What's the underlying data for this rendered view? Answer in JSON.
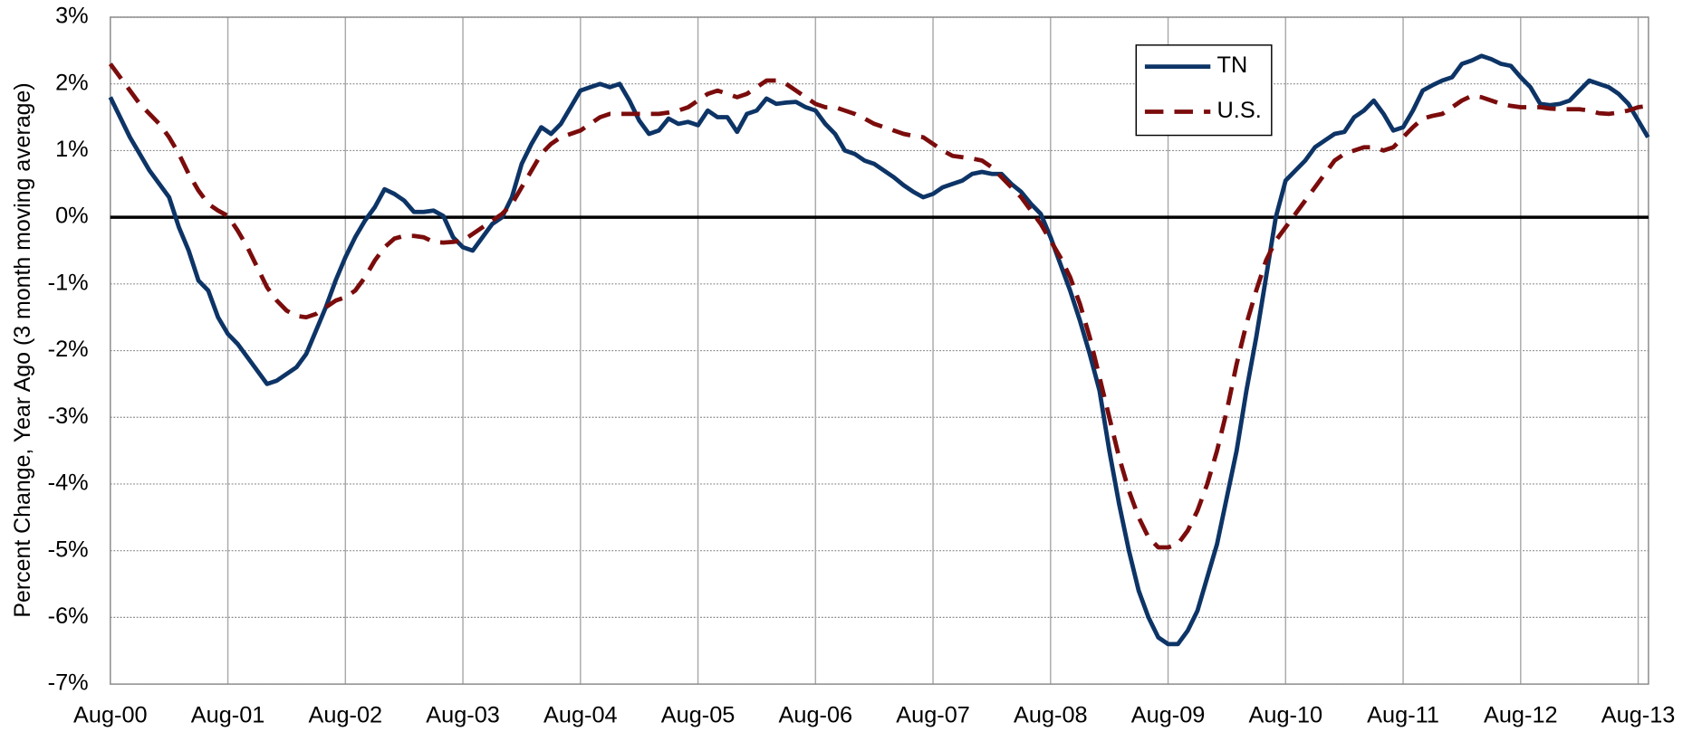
{
  "chart_data": {
    "type": "line",
    "y_label": "Percent Change, Year Ago (3 month moving average)",
    "categories": [
      "Aug-00",
      null,
      null,
      null,
      null,
      null,
      null,
      null,
      null,
      null,
      null,
      null,
      "Aug-01",
      null,
      null,
      null,
      null,
      null,
      null,
      null,
      null,
      null,
      null,
      null,
      "Aug-02",
      null,
      null,
      null,
      null,
      null,
      null,
      null,
      null,
      null,
      null,
      null,
      "Aug-03",
      null,
      null,
      null,
      null,
      null,
      null,
      null,
      null,
      null,
      null,
      null,
      "Aug-04",
      null,
      null,
      null,
      null,
      null,
      null,
      null,
      null,
      null,
      null,
      null,
      "Aug-05",
      null,
      null,
      null,
      null,
      null,
      null,
      null,
      null,
      null,
      null,
      null,
      "Aug-06",
      null,
      null,
      null,
      null,
      null,
      null,
      null,
      null,
      null,
      null,
      null,
      "Aug-07",
      null,
      null,
      null,
      null,
      null,
      null,
      null,
      null,
      null,
      null,
      null,
      "Aug-08",
      null,
      null,
      null,
      null,
      null,
      null,
      null,
      null,
      null,
      null,
      null,
      "Aug-09",
      null,
      null,
      null,
      null,
      null,
      null,
      null,
      null,
      null,
      null,
      null,
      "Aug-10",
      null,
      null,
      null,
      null,
      null,
      null,
      null,
      null,
      null,
      null,
      null,
      "Aug-11",
      null,
      null,
      null,
      null,
      null,
      null,
      null,
      null,
      null,
      null,
      null,
      "Aug-12",
      null,
      null,
      null,
      null,
      null,
      null,
      null,
      null,
      null,
      null,
      null,
      "Aug-13",
      null
    ],
    "series": [
      {
        "name": "TN",
        "color": "#0d3466",
        "dash": false,
        "values": [
          1.8,
          1.5,
          1.2,
          0.95,
          0.7,
          0.5,
          0.3,
          -0.15,
          -0.5,
          -0.95,
          -1.1,
          -1.5,
          -1.75,
          -1.9,
          -2.1,
          -2.3,
          -2.5,
          -2.45,
          -2.35,
          -2.25,
          -2.05,
          -1.7,
          -1.35,
          -0.95,
          -0.6,
          -0.3,
          -0.05,
          0.15,
          0.42,
          0.35,
          0.25,
          0.08,
          0.08,
          0.1,
          0.02,
          -0.3,
          -0.45,
          -0.5,
          -0.3,
          -0.1,
          0.0,
          0.3,
          0.8,
          1.1,
          1.35,
          1.25,
          1.4,
          1.65,
          1.9,
          1.95,
          2.0,
          1.95,
          2.0,
          1.75,
          1.45,
          1.25,
          1.3,
          1.48,
          1.4,
          1.43,
          1.38,
          1.6,
          1.5,
          1.5,
          1.28,
          1.55,
          1.6,
          1.78,
          1.7,
          1.72,
          1.73,
          1.65,
          1.6,
          1.4,
          1.25,
          1.0,
          0.95,
          0.85,
          0.8,
          0.7,
          0.6,
          0.48,
          0.38,
          0.3,
          0.35,
          0.45,
          0.5,
          0.55,
          0.65,
          0.68,
          0.65,
          0.65,
          0.5,
          0.38,
          0.2,
          0.05,
          -0.3,
          -0.7,
          -1.1,
          -1.55,
          -2.05,
          -2.6,
          -3.5,
          -4.3,
          -5.0,
          -5.6,
          -6.0,
          -6.3,
          -6.4,
          -6.4,
          -6.2,
          -5.9,
          -5.4,
          -4.9,
          -4.2,
          -3.5,
          -2.6,
          -1.8,
          -0.9,
          0.0,
          0.55,
          0.7,
          0.85,
          1.05,
          1.15,
          1.25,
          1.28,
          1.5,
          1.6,
          1.75,
          1.55,
          1.3,
          1.35,
          1.6,
          1.9,
          1.98,
          2.05,
          2.1,
          2.3,
          2.35,
          2.42,
          2.37,
          2.3,
          2.27,
          2.1,
          1.95,
          1.7,
          1.68,
          1.7,
          1.75,
          1.9,
          2.05,
          2.0,
          1.95,
          1.85,
          1.7,
          1.45,
          1.2
        ]
      },
      {
        "name": "U.S.",
        "color": "#7b0c0c",
        "dash": true,
        "values": [
          2.3,
          2.1,
          1.9,
          1.7,
          1.55,
          1.4,
          1.2,
          0.95,
          0.65,
          0.4,
          0.2,
          0.1,
          0.02,
          -0.2,
          -0.45,
          -0.75,
          -1.05,
          -1.25,
          -1.4,
          -1.48,
          -1.5,
          -1.45,
          -1.35,
          -1.25,
          -1.2,
          -1.1,
          -0.9,
          -0.65,
          -0.45,
          -0.32,
          -0.28,
          -0.28,
          -0.3,
          -0.37,
          -0.38,
          -0.37,
          -0.35,
          -0.25,
          -0.15,
          -0.05,
          0.05,
          0.2,
          0.45,
          0.7,
          0.95,
          1.1,
          1.2,
          1.25,
          1.3,
          1.4,
          1.5,
          1.55,
          1.55,
          1.55,
          1.55,
          1.55,
          1.55,
          1.57,
          1.6,
          1.65,
          1.75,
          1.85,
          1.9,
          1.85,
          1.8,
          1.85,
          1.95,
          2.05,
          2.05,
          2.0,
          1.9,
          1.8,
          1.7,
          1.65,
          1.65,
          1.6,
          1.55,
          1.48,
          1.4,
          1.35,
          1.3,
          1.25,
          1.22,
          1.2,
          1.1,
          1.0,
          0.92,
          0.9,
          0.88,
          0.85,
          0.75,
          0.6,
          0.45,
          0.3,
          0.1,
          -0.1,
          -0.35,
          -0.6,
          -0.9,
          -1.3,
          -1.8,
          -2.4,
          -3.0,
          -3.6,
          -4.1,
          -4.5,
          -4.8,
          -4.95,
          -4.95,
          -4.9,
          -4.7,
          -4.4,
          -4.0,
          -3.5,
          -2.9,
          -2.2,
          -1.6,
          -1.1,
          -0.65,
          -0.35,
          -0.15,
          0.05,
          0.25,
          0.45,
          0.65,
          0.85,
          0.95,
          1.0,
          1.05,
          1.05,
          1.0,
          1.05,
          1.2,
          1.35,
          1.48,
          1.52,
          1.55,
          1.65,
          1.75,
          1.82,
          1.8,
          1.75,
          1.7,
          1.67,
          1.65,
          1.65,
          1.65,
          1.63,
          1.62,
          1.62,
          1.62,
          1.6,
          1.56,
          1.55,
          1.57,
          1.6,
          1.65,
          1.67
        ]
      }
    ],
    "ylim": [
      -7,
      3
    ],
    "yticks": [
      {
        "value": -7,
        "label": "-7%"
      },
      {
        "value": -6,
        "label": "-6%"
      },
      {
        "value": -5,
        "label": "-5%"
      },
      {
        "value": -4,
        "label": "-4%"
      },
      {
        "value": -3,
        "label": "-3%"
      },
      {
        "value": -2,
        "label": "-2%"
      },
      {
        "value": -1,
        "label": "-1%"
      },
      {
        "value": 0,
        "label": "0%"
      },
      {
        "value": 1,
        "label": "1%"
      },
      {
        "value": 2,
        "label": "2%"
      },
      {
        "value": 3,
        "label": "3%"
      }
    ],
    "grid": true,
    "legend": "top-right"
  }
}
